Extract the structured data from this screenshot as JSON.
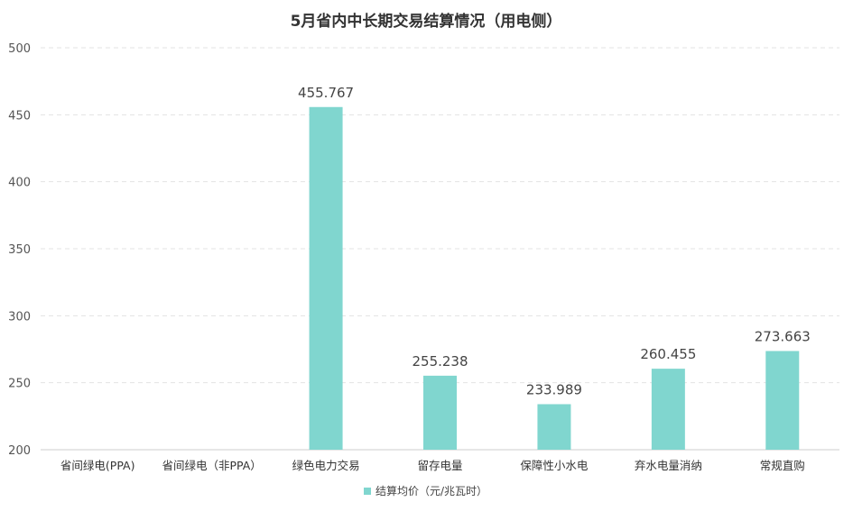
{
  "chart_data": {
    "type": "bar",
    "title": "5月省内中长期交易结算情况（用电侧）",
    "categories": [
      "省间绿电(PPA)",
      "省间绿电（非PPA）",
      "绿色电力交易",
      "留存电量",
      "保障性小水电",
      "弃水电量消纳",
      "常规直购"
    ],
    "series": [
      {
        "name": "结算均价（元/兆瓦时）",
        "values": [
          null,
          null,
          455.767,
          255.238,
          233.989,
          260.455,
          273.663
        ],
        "labels": [
          "",
          "",
          "455.767",
          "255.238",
          "233.989",
          "260.455",
          "273.663"
        ],
        "color": "#80d6cf"
      }
    ],
    "ylim": [
      200,
      500
    ],
    "yticks": [
      200,
      250,
      300,
      350,
      400,
      450,
      500
    ],
    "grid": true,
    "legend_position": "bottom"
  }
}
